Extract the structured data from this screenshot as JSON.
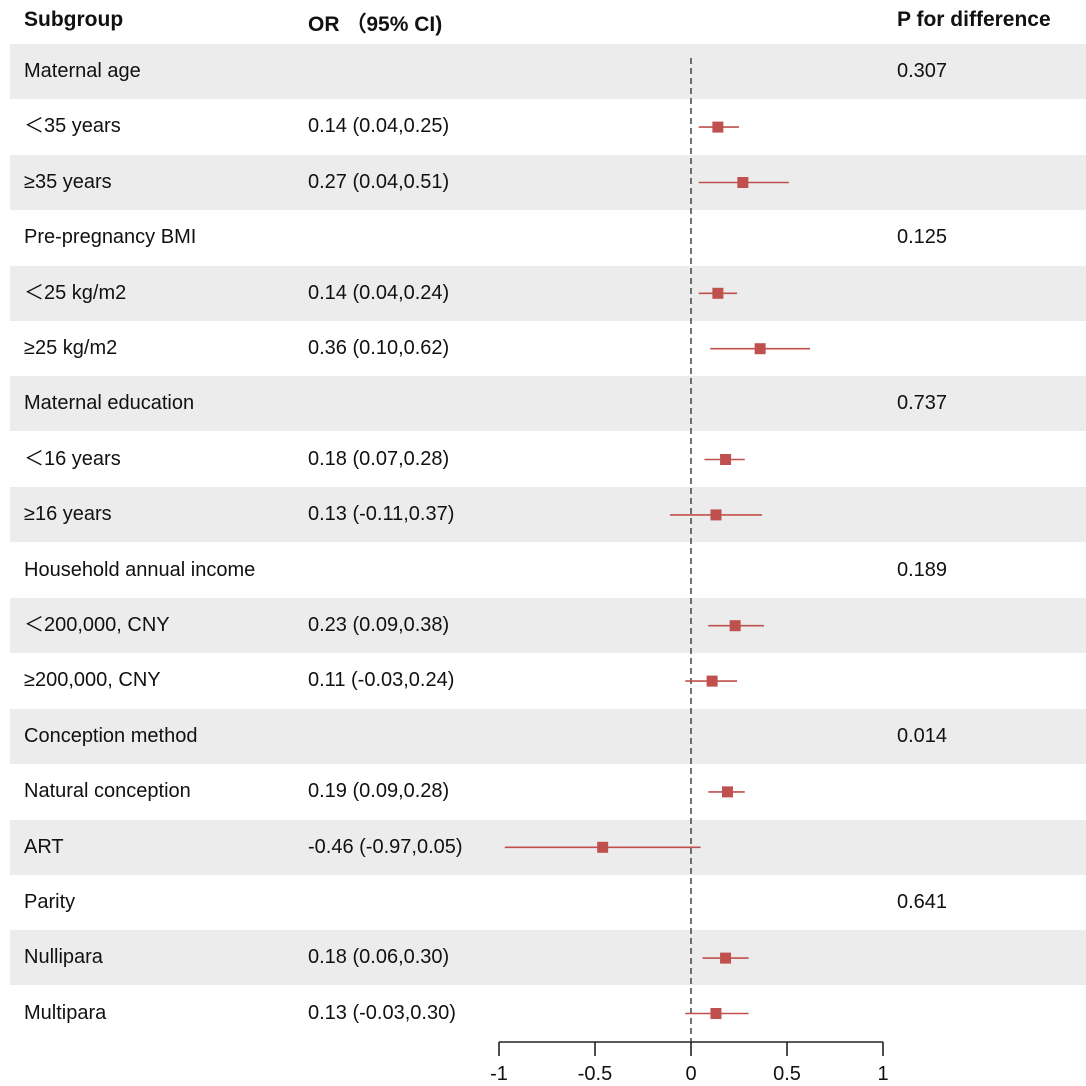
{
  "header": {
    "subgroup": "Subgroup",
    "or_ci": "OR （95% CI)",
    "p_diff": "P for difference"
  },
  "rows": [
    {
      "label": "Maternal age",
      "or_text": "",
      "p": "0.307",
      "shaded": true
    },
    {
      "label": "＜35 years",
      "or_text": "0.14 (0.04,0.25)",
      "p": "",
      "shaded": false
    },
    {
      "label": "≥35 years",
      "or_text": "0.27 (0.04,0.51)",
      "p": "",
      "shaded": true
    },
    {
      "label": "Pre-pregnancy BMI",
      "or_text": "",
      "p": "0.125",
      "shaded": false
    },
    {
      "label": "＜25 kg/m2",
      "or_text": "0.14 (0.04,0.24)",
      "p": "",
      "shaded": true
    },
    {
      "label": "≥25 kg/m2",
      "or_text": "0.36 (0.10,0.62)",
      "p": "",
      "shaded": false
    },
    {
      "label": "Maternal education",
      "or_text": "",
      "p": "0.737",
      "shaded": true
    },
    {
      "label": "＜16 years",
      "or_text": "0.18 (0.07,0.28)",
      "p": "",
      "shaded": false
    },
    {
      "label": "≥16 years",
      "or_text": "0.13 (-0.11,0.37)",
      "p": "",
      "shaded": true
    },
    {
      "label": "Household annual income",
      "or_text": "",
      "p": "0.189",
      "shaded": false
    },
    {
      "label": "＜200,000, CNY",
      "or_text": "0.23 (0.09,0.38)",
      "p": "",
      "shaded": true
    },
    {
      "label": "≥200,000, CNY",
      "or_text": "0.11 (-0.03,0.24)",
      "p": "",
      "shaded": false
    },
    {
      "label": "Conception method",
      "or_text": "",
      "p": "0.014",
      "shaded": true
    },
    {
      "label": "Natural conception",
      "or_text": "0.19 (0.09,0.28)",
      "p": "",
      "shaded": false
    },
    {
      "label": "ART",
      "or_text": "-0.46 (-0.97,0.05)",
      "p": "",
      "shaded": true
    },
    {
      "label": "Parity",
      "or_text": "",
      "p": "0.641",
      "shaded": false
    },
    {
      "label": "Nullipara",
      "or_text": "0.18 (0.06,0.30)",
      "p": "",
      "shaded": true
    },
    {
      "label": "Multipara",
      "or_text": "0.13 (-0.03,0.30)",
      "p": "",
      "shaded": false
    }
  ],
  "chart_data": {
    "type": "forest",
    "reference_line": 0,
    "xlim": [
      -1,
      1
    ],
    "x_ticks": [
      -1,
      -0.5,
      0,
      0.5,
      1
    ],
    "x_tick_labels": [
      "-1",
      "-0.5",
      "0",
      "0.5",
      "1"
    ],
    "marker_color": "#c0504d",
    "points": [
      {
        "subgroup": "＜35 years",
        "estimate": 0.14,
        "lower": 0.04,
        "upper": 0.25
      },
      {
        "subgroup": "≥35 years",
        "estimate": 0.27,
        "lower": 0.04,
        "upper": 0.51
      },
      {
        "subgroup": "＜25 kg/m2",
        "estimate": 0.14,
        "lower": 0.04,
        "upper": 0.24
      },
      {
        "subgroup": "≥25 kg/m2",
        "estimate": 0.36,
        "lower": 0.1,
        "upper": 0.62
      },
      {
        "subgroup": "＜16 years",
        "estimate": 0.18,
        "lower": 0.07,
        "upper": 0.28
      },
      {
        "subgroup": "≥16 years",
        "estimate": 0.13,
        "lower": -0.11,
        "upper": 0.37
      },
      {
        "subgroup": "＜200,000, CNY",
        "estimate": 0.23,
        "lower": 0.09,
        "upper": 0.38
      },
      {
        "subgroup": "≥200,000, CNY",
        "estimate": 0.11,
        "lower": -0.03,
        "upper": 0.24
      },
      {
        "subgroup": "Natural conception",
        "estimate": 0.19,
        "lower": 0.09,
        "upper": 0.28
      },
      {
        "subgroup": "ART",
        "estimate": -0.46,
        "lower": -0.97,
        "upper": 0.05
      },
      {
        "subgroup": "Nullipara",
        "estimate": 0.18,
        "lower": 0.06,
        "upper": 0.3
      },
      {
        "subgroup": "Multipara",
        "estimate": 0.13,
        "lower": -0.03,
        "upper": 0.3
      }
    ]
  }
}
